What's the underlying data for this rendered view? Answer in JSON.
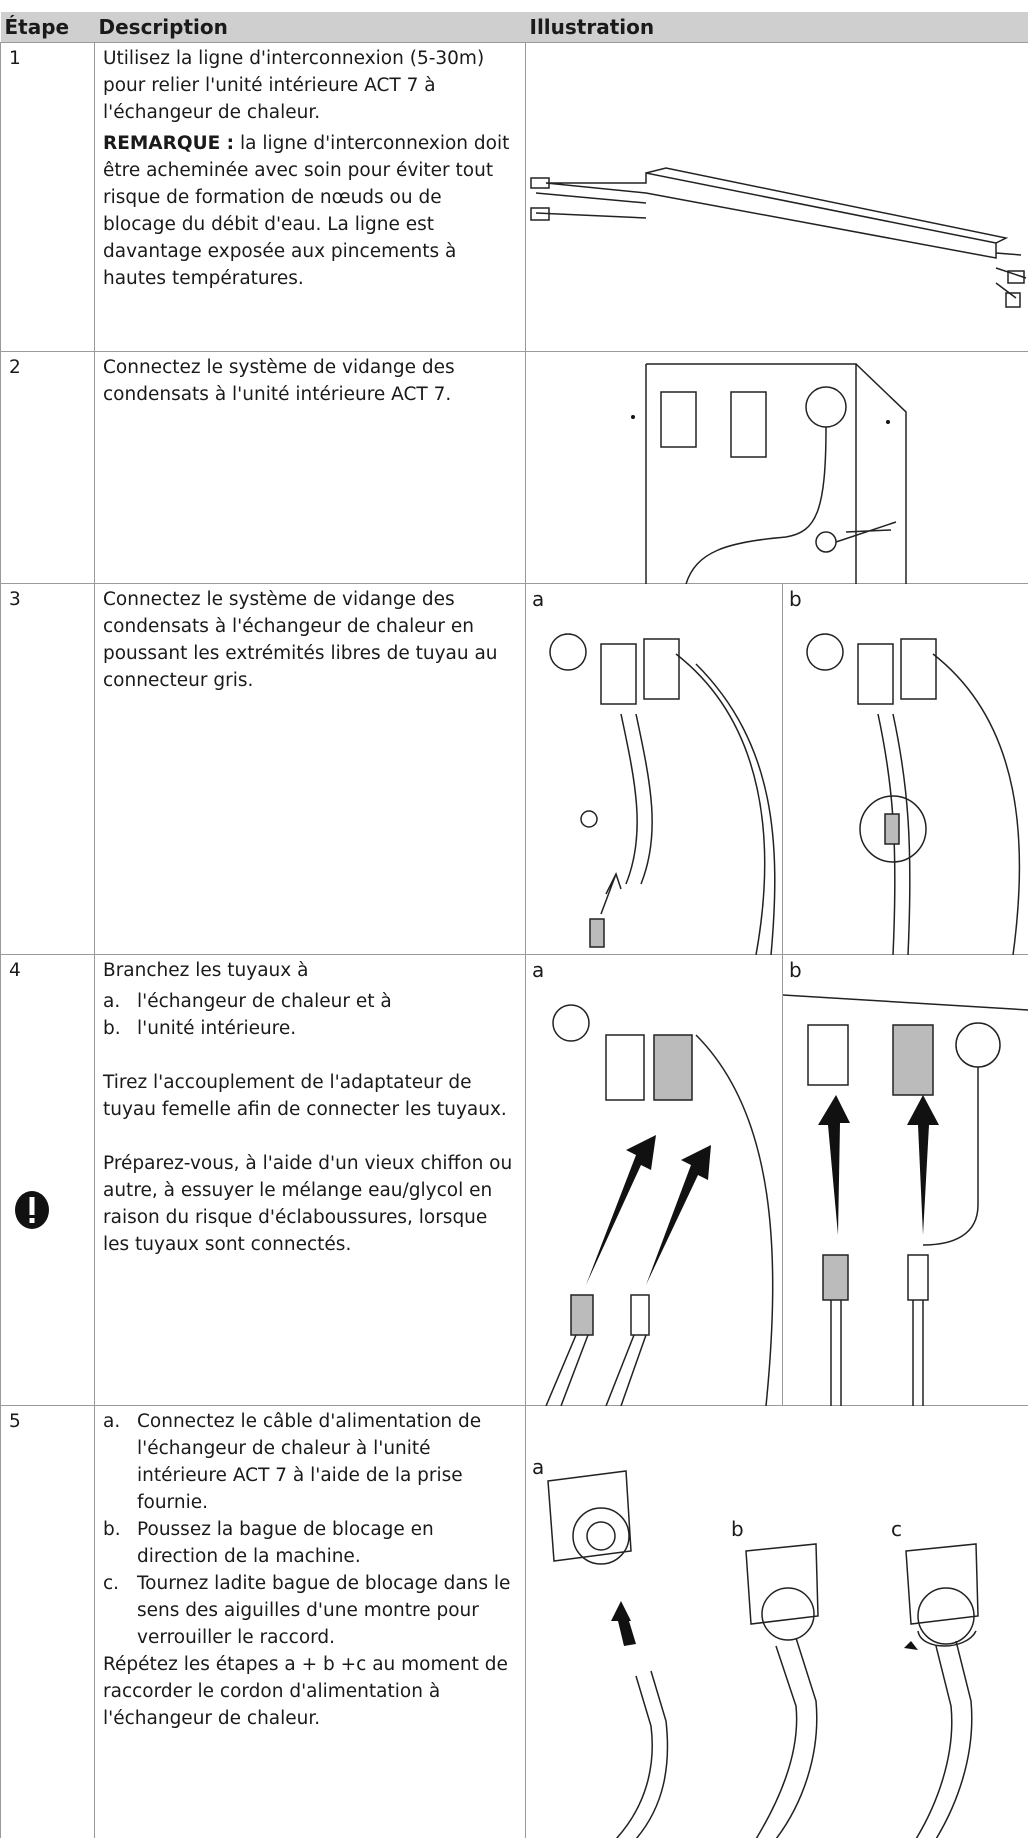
{
  "table": {
    "header": [
      "Étape",
      "Description",
      "Illustration"
    ],
    "rows": [
      {
        "step": "1",
        "text": "Utilisez la ligne d'interconnexion (5-30m) pour relier l'unité intérieure ACT 7 à l'échangeur de chaleur.",
        "note_label": "REMARQUE :",
        "note": "la ligne d'interconnexion doit être acheminée avec soin pour éviter tout risque de formation de nœuds ou de blocage du débit d'eau. La ligne est davantage exposée aux pincements à hautes températures."
      },
      {
        "step": "2",
        "text": "Connectez le système de vidange des condensats à l'unité intérieure ACT 7."
      },
      {
        "step": "3",
        "text": "Connectez le système de vidange des condensats à l'échangeur de chaleur en poussant les extrémités libres de tuyau au connecteur gris.",
        "labels": [
          "a",
          "b"
        ]
      },
      {
        "step": "4",
        "text": "Branchez les tuyaux à",
        "items": [
          {
            "marker": "a.",
            "text": "l'échangeur de chaleur et à"
          },
          {
            "marker": "b.",
            "text": "l'unité intérieure."
          }
        ],
        "text2": "Tirez l'accouplement de l'adaptateur de tuyau femelle afin de connecter les tuyaux.",
        "warning": "Préparez-vous, à l'aide d'un vieux chiffon ou autre, à essuyer le mélange eau/glycol en raison du risque d'éclaboussures, lorsque les tuyaux sont connectés.",
        "labels": [
          "a",
          "b"
        ]
      },
      {
        "step": "5",
        "items": [
          {
            "marker": "a.",
            "text": "Connectez le câble d'alimentation de l'échangeur de chaleur à l'unité intérieure ACT 7 à l'aide de la prise fournie."
          },
          {
            "marker": "b.",
            "text": "Poussez la bague de blocage en direction de la machine."
          },
          {
            "marker": "c.",
            "text": "Tournez ladite bague de blocage dans le sens des aiguilles d'une montre pour verrouiller le raccord."
          }
        ],
        "text2": "Répétez les étapes a + b +c au moment de raccorder le cordon d'alimentation à l'échangeur de chaleur.",
        "labels": [
          "a",
          "b",
          "c"
        ]
      }
    ]
  }
}
